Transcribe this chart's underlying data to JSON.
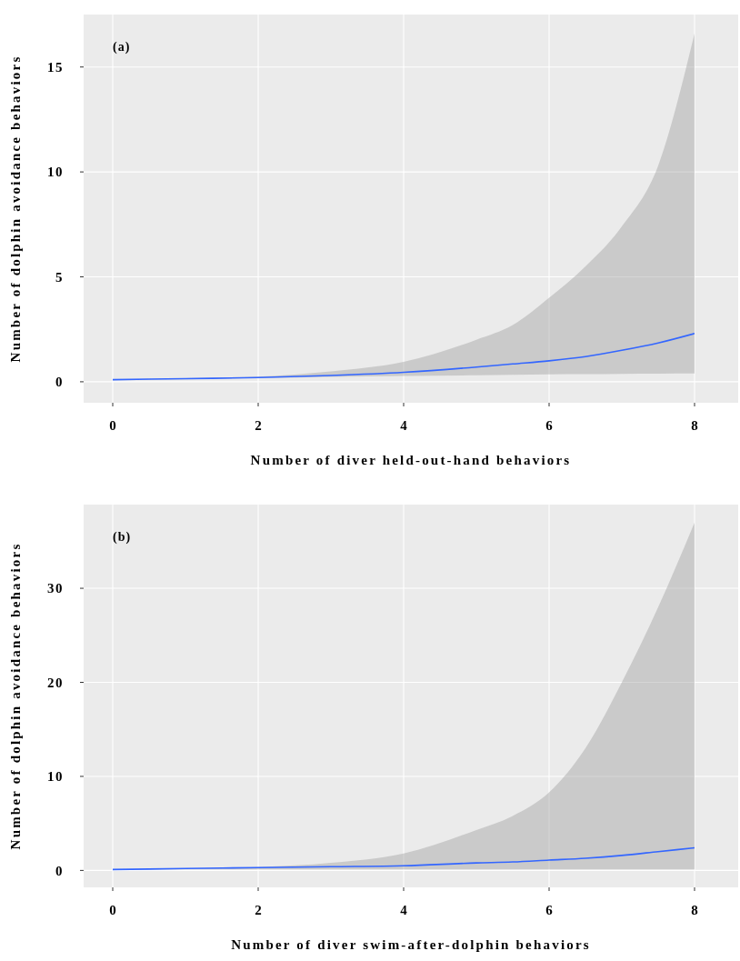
{
  "chart_data": [
    {
      "type": "line",
      "annotations": [
        "(a)"
      ],
      "xlabel": "Number of diver held-out-hand behaviors",
      "ylabel": "Number of dolphin avoidance behaviors",
      "xlim": [
        -0.4,
        8.6
      ],
      "ylim": [
        -1,
        17.5
      ],
      "xticks": [
        0,
        2,
        4,
        6,
        8
      ],
      "yticks": [
        0,
        5,
        10,
        15
      ],
      "grid": true,
      "series": [
        {
          "color": "#3366ff",
          "x": [
            0,
            1,
            2,
            3,
            4,
            5,
            5.5,
            6,
            6.5,
            7,
            7.5,
            8
          ],
          "values": [
            0.1,
            0.15,
            0.2,
            0.3,
            0.45,
            0.7,
            0.85,
            1.0,
            1.2,
            1.5,
            1.85,
            2.3
          ],
          "lower": [
            0.1,
            0.12,
            0.18,
            0.24,
            0.28,
            0.31,
            0.33,
            0.35,
            0.36,
            0.38,
            0.39,
            0.4
          ],
          "upper": [
            0.1,
            0.17,
            0.25,
            0.5,
            0.95,
            2.0,
            2.7,
            4.0,
            5.5,
            7.4,
            10.3,
            16.6
          ]
        }
      ]
    },
    {
      "type": "line",
      "annotations": [
        "(b)"
      ],
      "xlabel": "Number of diver swim-after-dolphin behaviors",
      "ylabel": "Number of dolphin avoidance behaviors",
      "xlim": [
        -0.4,
        8.6
      ],
      "ylim": [
        -1.8,
        38.9
      ],
      "xticks": [
        0,
        2,
        4,
        6,
        8
      ],
      "yticks": [
        0,
        10,
        20,
        30
      ],
      "grid": true,
      "series": [
        {
          "color": "#3366ff",
          "x": [
            0,
            1,
            2,
            3,
            4,
            5,
            5.5,
            6,
            6.5,
            7,
            7.5,
            8
          ],
          "values": [
            0.1,
            0.2,
            0.3,
            0.4,
            0.5,
            0.8,
            0.9,
            1.1,
            1.3,
            1.6,
            2.0,
            2.4
          ],
          "lower": [
            0.1,
            0.1,
            0.1,
            0.1,
            0.1,
            0.1,
            0.1,
            0.1,
            0.1,
            0.1,
            0.1,
            0.1
          ],
          "upper": [
            0.1,
            0.2,
            0.35,
            0.8,
            1.8,
            4.3,
            5.8,
            8.3,
            13,
            20,
            28,
            37
          ]
        }
      ]
    }
  ]
}
